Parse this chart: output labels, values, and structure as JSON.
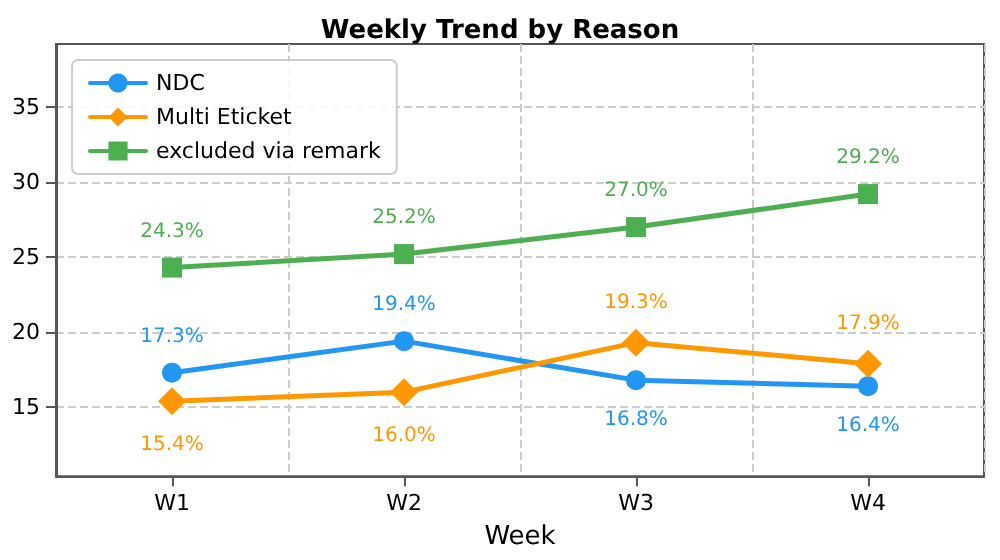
{
  "chart_data": {
    "type": "line",
    "title": "Weekly Trend by Reason",
    "xlabel": "Week",
    "categories": [
      "W1",
      "W2",
      "W3",
      "W4"
    ],
    "series": [
      {
        "name": "NDC",
        "color": "#2196f3",
        "marker": "circle",
        "values": [
          17.3,
          19.4,
          16.8,
          16.4
        ],
        "value_labels": [
          "17.3%",
          "19.4%",
          "16.8%",
          "16.4%"
        ]
      },
      {
        "name": "Multi Eticket",
        "color": "#ff9800",
        "marker": "diamond",
        "values": [
          15.4,
          16.0,
          19.3,
          17.9
        ],
        "value_labels": [
          "15.4%",
          "16.0%",
          "19.3%",
          "17.9%"
        ]
      },
      {
        "name": "excluded via remark",
        "color": "#4caf50",
        "marker": "square",
        "values": [
          24.3,
          25.2,
          27.0,
          29.2
        ],
        "value_labels": [
          "24.3%",
          "25.2%",
          "27.0%",
          "29.2%"
        ]
      }
    ],
    "ylim": [
      10.4,
      39.2
    ],
    "yticks": [
      15,
      20,
      25,
      30,
      35
    ],
    "grid": true,
    "legend": "top left",
    "line_style": "solid"
  }
}
